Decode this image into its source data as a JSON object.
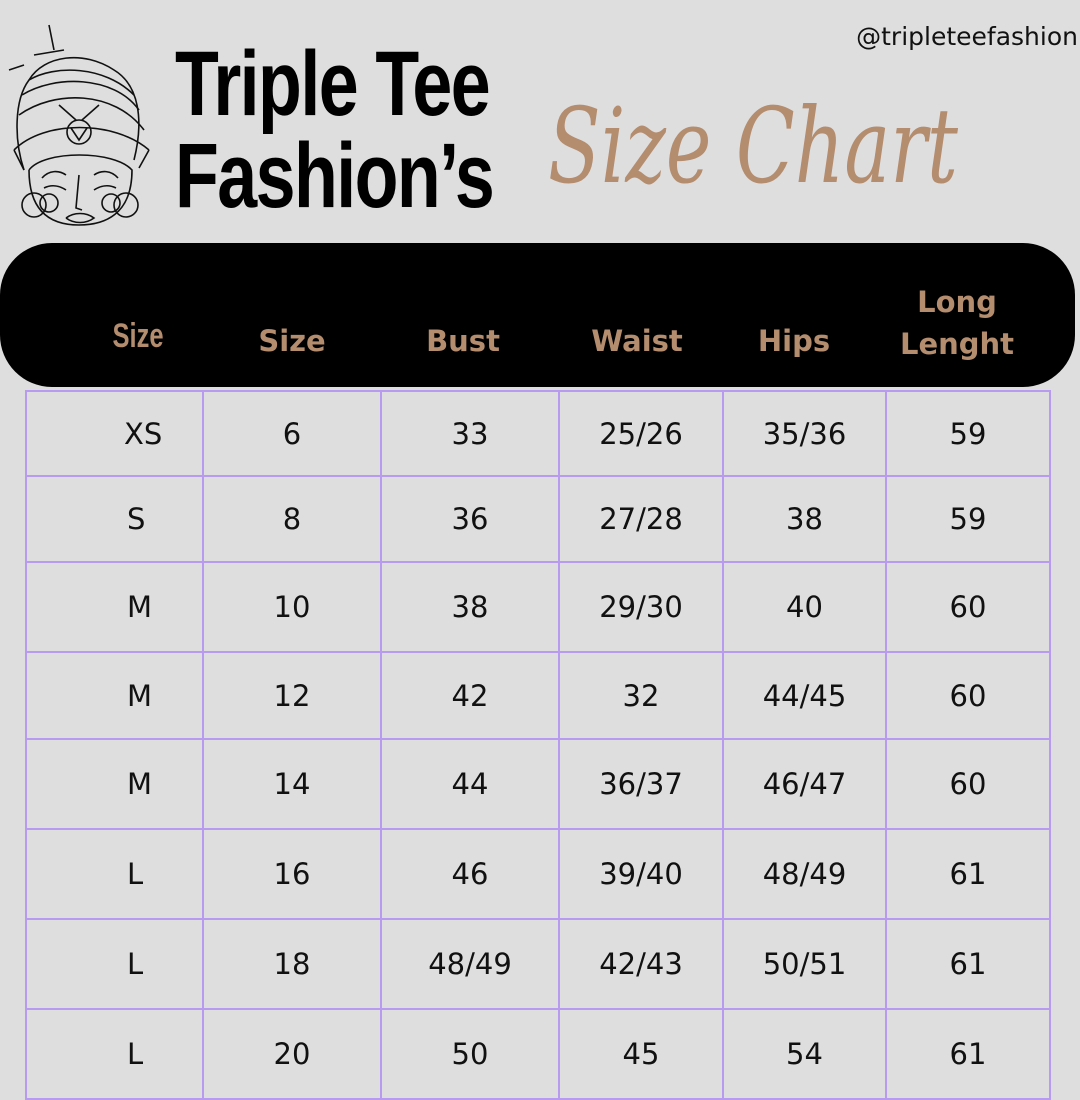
{
  "handle": "@tripleteefashion",
  "brand": {
    "line1": "Triple Tee",
    "line2": "Fashion’s"
  },
  "title": "Size Chart",
  "colors": {
    "background": "#dedede",
    "accent": "#b48c6e",
    "header": "#000000",
    "grid": "#b89af0"
  },
  "logo_icon": "woman-with-headwrap-icon",
  "table": {
    "headers": [
      "Size",
      "Size",
      "Bust",
      "Waist",
      "Hips",
      "Long Lenght"
    ],
    "rows": [
      [
        "XS",
        "6",
        "33",
        "25/26",
        "35/36",
        "59"
      ],
      [
        "S",
        "8",
        "36",
        "27/28",
        "38",
        "59"
      ],
      [
        "M",
        "10",
        "38",
        "29/30",
        "40",
        "60"
      ],
      [
        "M",
        "12",
        "42",
        "32",
        "44/45",
        "60"
      ],
      [
        "M",
        "14",
        "44",
        "36/37",
        "46/47",
        "60"
      ],
      [
        "L",
        "16",
        "46",
        "39/40",
        "48/49",
        "61"
      ],
      [
        "L",
        "18",
        "48/49",
        "42/43",
        "50/51",
        "61"
      ],
      [
        "L",
        "20",
        "50",
        "45",
        "54",
        "61"
      ]
    ]
  }
}
